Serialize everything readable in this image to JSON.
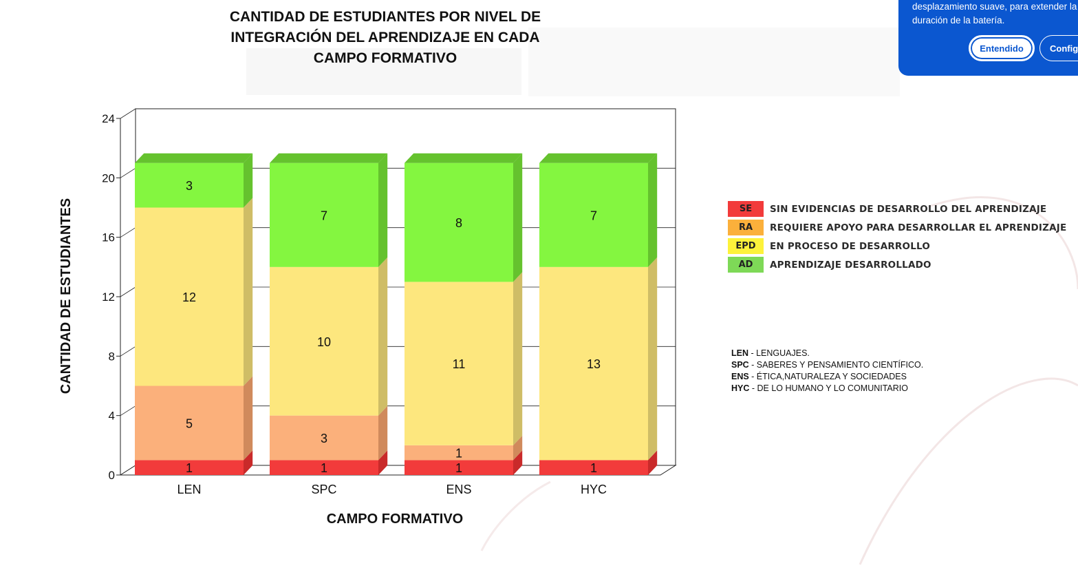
{
  "chart_data": {
    "type": "bar",
    "stacked": true,
    "title": "CANTIDAD DE ESTUDIANTES POR NIVEL DE INTEGRACIÓN DEL APRENDIZAJE EN CADA CAMPO FORMATIVO",
    "title_lines": [
      "CANTIDAD DE ESTUDIANTES POR NIVEL DE",
      "INTEGRACIÓN DEL APRENDIZAJE EN CADA",
      "CAMPO FORMATIVO"
    ],
    "xlabel": "CAMPO FORMATIVO",
    "ylabel": "CANTIDAD DE ESTUDIANTES",
    "ylim": [
      0,
      24
    ],
    "yticks": [
      0,
      4,
      8,
      12,
      16,
      20,
      24
    ],
    "grid": true,
    "legend_position": "right",
    "categories": [
      "LEN",
      "SPC",
      "ENS",
      "HYC"
    ],
    "series": [
      {
        "name": "SE",
        "color": "#f23b3b",
        "side": "#c92a2a",
        "values": [
          1,
          1,
          1,
          1
        ]
      },
      {
        "name": "RA",
        "color": "#fbb07b",
        "side": "#d08a5c",
        "values": [
          5,
          3,
          1,
          0
        ]
      },
      {
        "name": "EPD",
        "color": "#fde77e",
        "side": "#cfbd66",
        "values": [
          12,
          10,
          11,
          13
        ]
      },
      {
        "name": "AD",
        "color": "#84f640",
        "side": "#65c22e",
        "values": [
          3,
          7,
          8,
          7
        ]
      }
    ]
  },
  "legend": [
    {
      "abbr": "SE",
      "label": "SIN EVIDENCIAS DE DESARROLLO DEL APRENDIZAJE",
      "color": "#f23b3b"
    },
    {
      "abbr": "RA",
      "label": "REQUIERE APOYO PARA DESARROLLAR EL APRENDIZAJE",
      "color": "#fbb03b"
    },
    {
      "abbr": "EPD",
      "label": "EN PROCESO DE DESARROLLO",
      "color": "#fdf23b"
    },
    {
      "abbr": "AD",
      "label": "APRENDIZAJE DESARROLLADO",
      "color": "#7ed957"
    }
  ],
  "abbreviations": [
    {
      "code": "LEN",
      "text": " - LENGUAJES."
    },
    {
      "code": "SPC",
      "text": " - SABERES Y PENSAMIENTO CIENTÍFICO."
    },
    {
      "code": "ENS",
      "text": " - ÉTICA,NATURALEZA Y SOCIEDADES"
    },
    {
      "code": "HYC",
      "text": " - DE LO HUMANO Y LO COMUNITARIO"
    }
  ],
  "toast": {
    "text": "desplazamiento suave, para extender la\nduración de la batería.",
    "primary_label": "Entendido",
    "secondary_label": "Configu"
  }
}
